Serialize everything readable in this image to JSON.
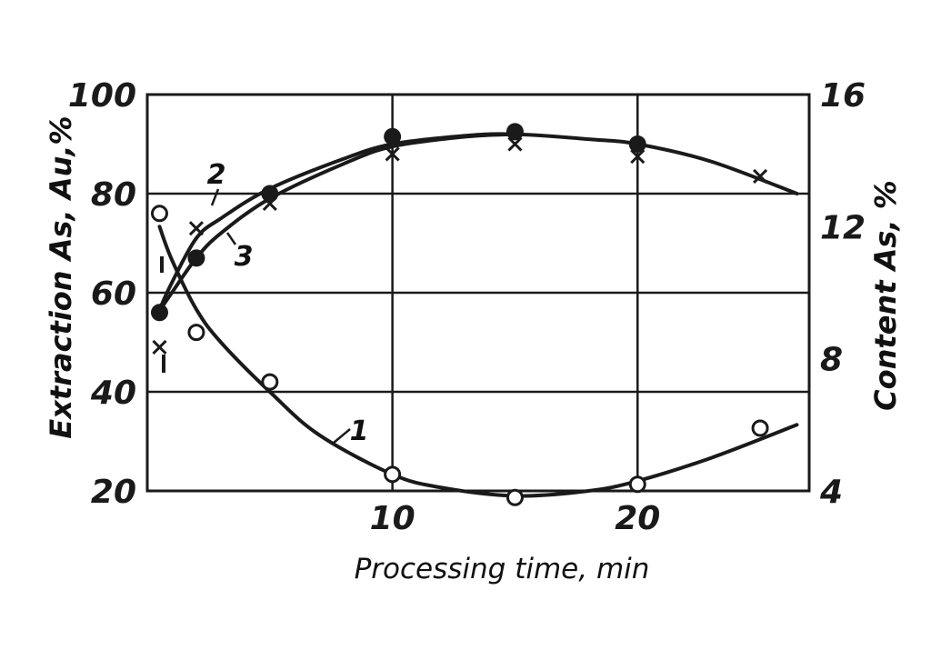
{
  "chart_data": {
    "type": "line",
    "title": "",
    "xlabel": "Processing time, min",
    "ylabel": "Extraction As, Au,%",
    "ylabel_right": "Content As, %",
    "xlim": [
      0,
      27
    ],
    "ylim": [
      20,
      100
    ],
    "ylim_right": [
      4,
      16
    ],
    "x_ticks": [
      "10",
      "20"
    ],
    "y_ticks": [
      "20",
      "40",
      "60",
      "80",
      "100"
    ],
    "y_ticks_right": [
      "4",
      "8",
      "12",
      "16"
    ],
    "grid": true,
    "series": [
      {
        "name": "1",
        "axis": "right",
        "marker": "open-circle",
        "points": [
          [
            0.5,
            12.4
          ],
          [
            2,
            8.8
          ],
          [
            5,
            7.3
          ],
          [
            10,
            4.5
          ],
          [
            15,
            3.8
          ],
          [
            20,
            4.2
          ],
          [
            25,
            5.9
          ]
        ]
      },
      {
        "name": "2",
        "axis": "left",
        "marker": "x",
        "points": [
          [
            0.5,
            49
          ],
          [
            2,
            73
          ],
          [
            5,
            78
          ],
          [
            10,
            88
          ],
          [
            15,
            90
          ],
          [
            20,
            87.5
          ],
          [
            25,
            83.5
          ]
        ]
      },
      {
        "name": "3",
        "axis": "left",
        "marker": "filled-circle",
        "points": [
          [
            0.5,
            56
          ],
          [
            2,
            67
          ],
          [
            5,
            80
          ],
          [
            10,
            91.5
          ],
          [
            15,
            92.5
          ],
          [
            20,
            90
          ]
        ]
      }
    ]
  }
}
